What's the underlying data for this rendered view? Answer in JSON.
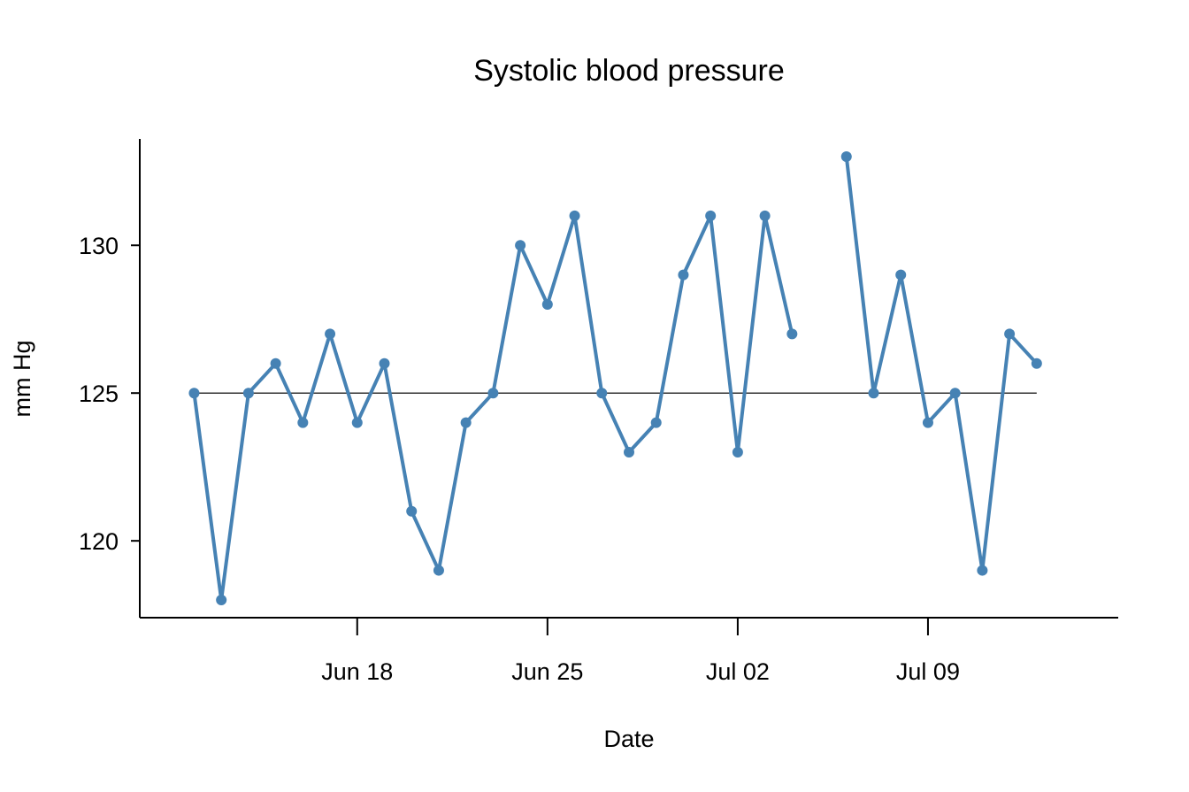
{
  "chart_data": {
    "type": "line",
    "title": "Systolic blood pressure",
    "xlabel": "Date",
    "ylabel": "mm Hg",
    "x_axis_type": "date",
    "x_ticks": [
      {
        "date": "2023-06-18",
        "label": "Jun 18"
      },
      {
        "date": "2023-06-25",
        "label": "Jun 25"
      },
      {
        "date": "2023-07-02",
        "label": "Jul 02"
      },
      {
        "date": "2023-07-09",
        "label": "Jul 09"
      }
    ],
    "y_ticks": [
      120,
      125,
      130
    ],
    "xlim": [
      "2023-06-10",
      "2023-07-16"
    ],
    "ylim": [
      117.4,
      133.6
    ],
    "reference_line": 125,
    "line_color": "#4682B4",
    "reference_line_color": "#333333",
    "grid": false,
    "series": [
      {
        "points": [
          {
            "date": "2023-06-12",
            "value": 125
          },
          {
            "date": "2023-06-13",
            "value": 118
          },
          {
            "date": "2023-06-14",
            "value": 125
          },
          {
            "date": "2023-06-15",
            "value": 126
          },
          {
            "date": "2023-06-16",
            "value": 124
          },
          {
            "date": "2023-06-17",
            "value": 127
          },
          {
            "date": "2023-06-18",
            "value": 124
          },
          {
            "date": "2023-06-19",
            "value": 126
          },
          {
            "date": "2023-06-20",
            "value": 121
          },
          {
            "date": "2023-06-21",
            "value": 119
          },
          {
            "date": "2023-06-22",
            "value": 124
          },
          {
            "date": "2023-06-23",
            "value": 125
          },
          {
            "date": "2023-06-24",
            "value": 130
          },
          {
            "date": "2023-06-25",
            "value": 128
          },
          {
            "date": "2023-06-26",
            "value": 131
          },
          {
            "date": "2023-06-27",
            "value": 125
          },
          {
            "date": "2023-06-28",
            "value": 123
          },
          {
            "date": "2023-06-29",
            "value": 124
          },
          {
            "date": "2023-06-30",
            "value": 129
          },
          {
            "date": "2023-07-01",
            "value": 131
          },
          {
            "date": "2023-07-02",
            "value": 123
          },
          {
            "date": "2023-07-03",
            "value": 131
          },
          {
            "date": "2023-07-04",
            "value": 127
          },
          {
            "date": "2023-07-05",
            "value": null
          },
          {
            "date": "2023-07-06",
            "value": 133
          },
          {
            "date": "2023-07-07",
            "value": 125
          },
          {
            "date": "2023-07-08",
            "value": 129
          },
          {
            "date": "2023-07-09",
            "value": 124
          },
          {
            "date": "2023-07-10",
            "value": 125
          },
          {
            "date": "2023-07-11",
            "value": 119
          },
          {
            "date": "2023-07-12",
            "value": 127
          },
          {
            "date": "2023-07-13",
            "value": 126
          }
        ]
      }
    ]
  }
}
